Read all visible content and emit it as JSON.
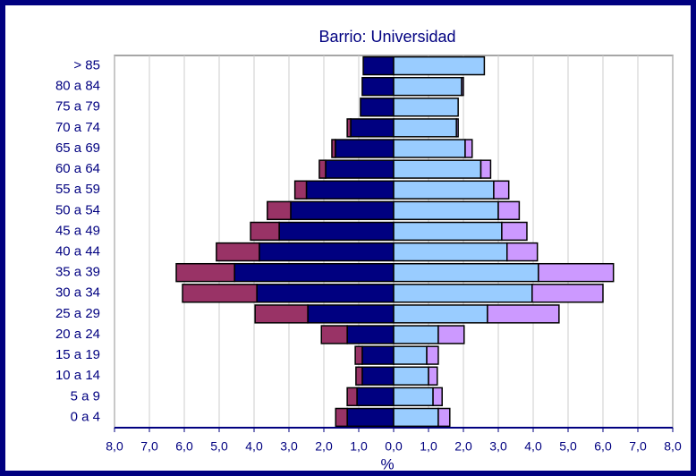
{
  "chart_data": {
    "type": "pyramid",
    "title": "Barrio: Universidad",
    "xlabel": "%",
    "categories": [
      "> 85",
      "80 a 84",
      "75 a 79",
      "70 a 74",
      "65 a 69",
      "60 a 64",
      "55 a 59",
      "50 a 54",
      "45 a 49",
      "40 a 44",
      "35 a 39",
      "30 a 34",
      "25 a 29",
      "20 a 24",
      "15 a 19",
      "10 a 14",
      "5 a 9",
      "0 a 4"
    ],
    "series": [
      {
        "side": "left",
        "color": "#000080",
        "values": [
          0.87,
          0.9,
          0.95,
          1.23,
          1.67,
          1.95,
          2.5,
          2.95,
          3.28,
          3.85,
          4.56,
          3.92,
          2.46,
          1.33,
          0.9,
          0.9,
          1.05,
          1.33
        ]
      },
      {
        "side": "left",
        "color": "#993366",
        "values": [
          0,
          0,
          0,
          0.1,
          0.1,
          0.18,
          0.33,
          0.67,
          0.82,
          1.23,
          1.67,
          2.13,
          1.51,
          0.74,
          0.2,
          0.18,
          0.28,
          0.33
        ]
      },
      {
        "side": "right",
        "color": "#99ccff",
        "values": [
          2.6,
          1.95,
          1.85,
          1.8,
          2.05,
          2.5,
          2.87,
          3.0,
          3.1,
          3.25,
          4.15,
          3.97,
          2.69,
          1.28,
          0.95,
          1.0,
          1.13,
          1.28
        ]
      },
      {
        "side": "right",
        "color": "#cc99ff",
        "values": [
          0,
          0.05,
          0,
          0.05,
          0.2,
          0.28,
          0.43,
          0.6,
          0.72,
          0.87,
          2.15,
          2.03,
          2.05,
          0.74,
          0.33,
          0.25,
          0.26,
          0.33
        ]
      }
    ],
    "xlim": [
      -8,
      8
    ],
    "xticks": [
      {
        "value": -8,
        "label": "8,0"
      },
      {
        "value": -7,
        "label": "7,0"
      },
      {
        "value": -6,
        "label": "6,0"
      },
      {
        "value": -5,
        "label": "5,0"
      },
      {
        "value": -4,
        "label": "4,0"
      },
      {
        "value": -3,
        "label": "3,0"
      },
      {
        "value": -2,
        "label": "2,0"
      },
      {
        "value": -1,
        "label": "1,0"
      },
      {
        "value": 0,
        "label": "0,0"
      },
      {
        "value": 1,
        "label": "1,0"
      },
      {
        "value": 2,
        "label": "2,0"
      },
      {
        "value": 3,
        "label": "3,0"
      },
      {
        "value": 4,
        "label": "4,0"
      },
      {
        "value": 5,
        "label": "5,0"
      },
      {
        "value": 6,
        "label": "6,0"
      },
      {
        "value": 7,
        "label": "7,0"
      },
      {
        "value": 8,
        "label": "8,0"
      }
    ],
    "grid": true
  }
}
